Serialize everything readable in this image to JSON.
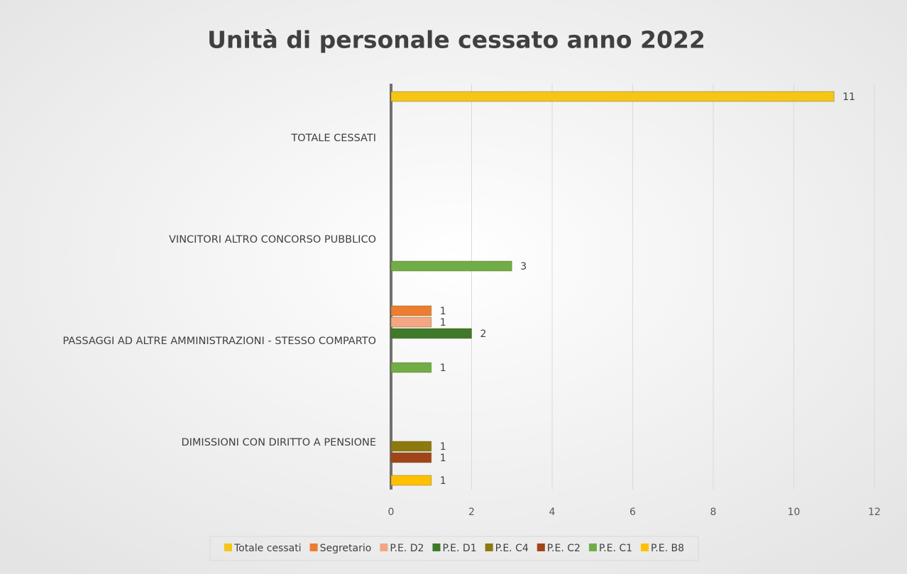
{
  "chart_data": {
    "type": "bar",
    "orientation": "horizontal",
    "title": "Unità di personale cessato anno 2022",
    "categories": [
      "TOTALE CESSATI",
      "VINCITORI ALTRO CONCORSO PUBBLICO",
      "PASSAGGI AD ALTRE AMMINISTRAZIONI - STESSO COMPARTO",
      "DIMISSIONI CON DIRITTO A PENSIONE"
    ],
    "series": [
      {
        "name": "Totale cessati",
        "color": "#f5c518",
        "values": [
          11,
          null,
          null,
          null
        ]
      },
      {
        "name": "Segretario",
        "color": "#ed7d31",
        "values": [
          null,
          null,
          1,
          null
        ]
      },
      {
        "name": "P.E. D2",
        "color": "#f4a582",
        "values": [
          null,
          null,
          1,
          null
        ]
      },
      {
        "name": "P.E. D1",
        "color": "#3e7a2a",
        "values": [
          null,
          null,
          2,
          null
        ]
      },
      {
        "name": "P.E. C4",
        "color": "#8c7a10",
        "values": [
          null,
          null,
          null,
          1
        ]
      },
      {
        "name": "P.E. C2",
        "color": "#a0451a",
        "values": [
          null,
          null,
          null,
          1
        ]
      },
      {
        "name": "P.E. C1",
        "color": "#70ad47",
        "values": [
          null,
          3,
          1,
          null
        ]
      },
      {
        "name": "P.E. B8",
        "color": "#ffc000",
        "values": [
          null,
          null,
          null,
          1
        ]
      }
    ],
    "xlim": [
      0,
      12
    ],
    "xticks": [
      0,
      2,
      4,
      6,
      8,
      10,
      12
    ],
    "grid": true,
    "legend": "bottom"
  }
}
